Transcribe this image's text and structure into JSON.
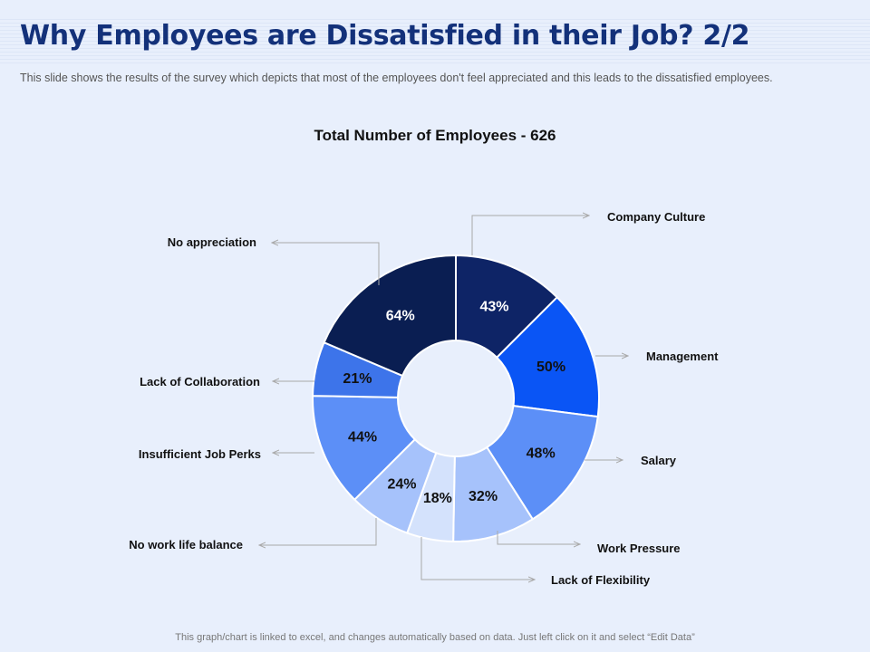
{
  "header": {
    "title": "Why Employees are Dissatisfied in their Job? 2/2",
    "subtitle": "This slide shows the results of the survey which depicts that most of the employees don't feel appreciated and this leads to the dissatisfied employees."
  },
  "footer": {
    "note": "This graph/chart is linked to excel, and changes automatically based on data. Just left click on it and select “Edit Data”"
  },
  "chart_data": {
    "type": "pie",
    "variant": "donut",
    "title": "Total Number of Employees - 626",
    "categories": [
      "Company Culture",
      "Management",
      "Salary",
      "Work Pressure",
      "Lack of Flexibility",
      "No work life balance",
      "Insufficient Job Perks",
      "Lack of Collaboration",
      "No appreciation"
    ],
    "values": [
      43,
      50,
      48,
      32,
      18,
      24,
      44,
      21,
      64
    ],
    "labels": [
      "43%",
      "50%",
      "48%",
      "32%",
      "18%",
      "24%",
      "44%",
      "21%",
      "64%"
    ],
    "colors": [
      "#0e2466",
      "#0a55f5",
      "#5c8ff7",
      "#a6c2fb",
      "#d4e2fc",
      "#a6c2fb",
      "#5c8ff7",
      "#3d74ea",
      "#0a1e52"
    ],
    "label_colors": [
      "#ffffff",
      "#111111",
      "#111111",
      "#111111",
      "#111111",
      "#111111",
      "#111111",
      "#111111",
      "#ffffff"
    ]
  }
}
